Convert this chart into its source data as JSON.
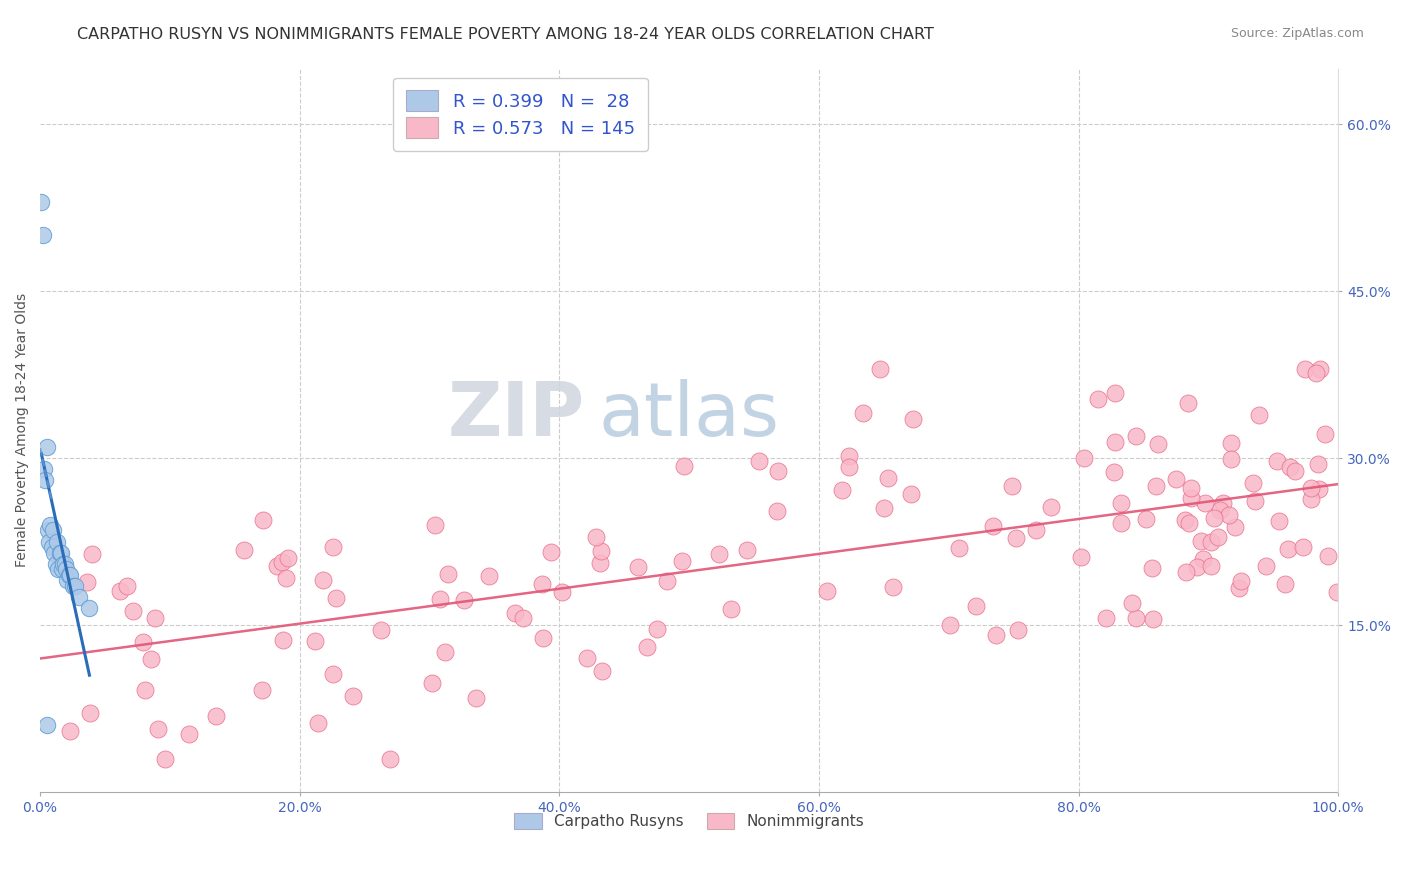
{
  "title": "CARPATHO RUSYN VS NONIMMIGRANTS FEMALE POVERTY AMONG 18-24 YEAR OLDS CORRELATION CHART",
  "source": "Source: ZipAtlas.com",
  "ylabel": "Female Poverty Among 18-24 Year Olds",
  "xlim": [
    0.0,
    1.0
  ],
  "ylim": [
    0.0,
    0.65
  ],
  "x_tick_labels": [
    "0.0%",
    "20.0%",
    "40.0%",
    "60.0%",
    "80.0%",
    "100.0%"
  ],
  "x_tick_vals": [
    0.0,
    0.2,
    0.4,
    0.6,
    0.8,
    1.0
  ],
  "y_tick_labels": [
    "15.0%",
    "30.0%",
    "45.0%",
    "60.0%"
  ],
  "y_tick_vals": [
    0.15,
    0.3,
    0.45,
    0.6
  ],
  "legend_labels": [
    "Carpatho Rusyns",
    "Nonimmigrants"
  ],
  "legend_R": [
    0.399,
    0.573
  ],
  "legend_N": [
    28,
    145
  ],
  "blue_color": "#aec9e8",
  "blue_edge_color": "#5b9bd5",
  "blue_line_color": "#2b6cb8",
  "pink_color": "#f9b8c8",
  "pink_edge_color": "#e8708a",
  "pink_line_color": "#e05575",
  "watermark_zip": "ZIP",
  "watermark_atlas": "atlas",
  "watermark_zip_color": "#d8dde8",
  "watermark_atlas_color": "#b8c8e0",
  "background_color": "#ffffff",
  "grid_color": "#cccccc",
  "title_fontsize": 11.5,
  "axis_label_fontsize": 10,
  "tick_fontsize": 10,
  "legend_fontsize": 13,
  "tick_color": "#4466bb",
  "legend_text_color": "#3355cc"
}
